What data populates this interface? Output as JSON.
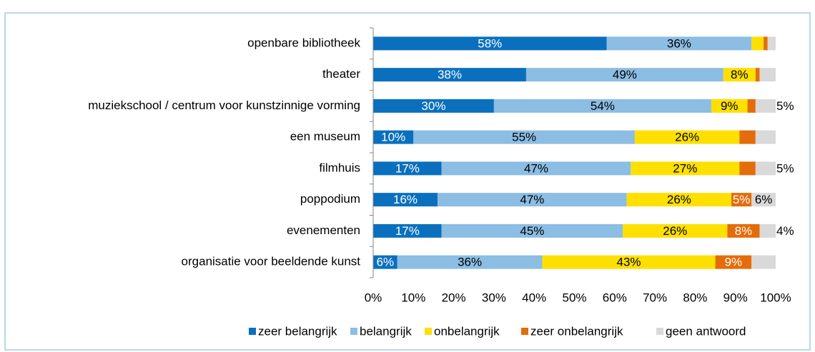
{
  "chart_data": {
    "type": "stacked_barh",
    "categories": [
      "openbare bibliotheek",
      "theater",
      "muziekschool / centrum voor kunstzinnige vorming",
      "een museum",
      "filmhuis",
      "poppodium",
      "evenementen",
      "organisatie voor beeldende kunst"
    ],
    "series": [
      {
        "name": "zeer belangrijk",
        "color": "#0a70be",
        "label_color": "#ffffff",
        "values": [
          58,
          38,
          30,
          10,
          17,
          16,
          17,
          6
        ],
        "value_labels": [
          "58%",
          "38%",
          "30%",
          "10%",
          "17%",
          "16%",
          "17%",
          "6%"
        ]
      },
      {
        "name": "belangrijk",
        "color": "#8cbde3",
        "label_color": "#000000",
        "values": [
          36,
          49,
          54,
          55,
          47,
          47,
          45,
          36
        ],
        "value_labels": [
          "36%",
          "49%",
          "54%",
          "55%",
          "47%",
          "47%",
          "45%",
          "36%"
        ]
      },
      {
        "name": "onbelangrijk",
        "color": "#fde000",
        "label_color": "#000000",
        "values": [
          3,
          8,
          9,
          26,
          27,
          26,
          26,
          43
        ],
        "value_labels": [
          null,
          "8%",
          "9%",
          "26%",
          "27%",
          "26%",
          "26%",
          "43%"
        ]
      },
      {
        "name": "zeer onbelangrijk",
        "color": "#e46c0a",
        "label_color": "#ffffff",
        "values": [
          1,
          1,
          2,
          4,
          4,
          5,
          8,
          9
        ],
        "value_labels": [
          null,
          null,
          null,
          null,
          null,
          "5%",
          "8%",
          "9%"
        ]
      },
      {
        "name": "geen antwoord",
        "color": "#d9d9d9",
        "label_color": "#000000",
        "values": [
          2,
          4,
          5,
          5,
          5,
          6,
          4,
          6
        ],
        "value_labels": [
          null,
          null,
          "5%",
          null,
          "5%",
          "6%",
          "4%",
          null
        ]
      }
    ],
    "xlim": [
      0,
      100
    ],
    "xticks": [
      {
        "value": 0,
        "label": "0%"
      },
      {
        "value": 10,
        "label": "10%"
      },
      {
        "value": 20,
        "label": "20%"
      },
      {
        "value": 30,
        "label": "30%"
      },
      {
        "value": 40,
        "label": "40%"
      },
      {
        "value": 50,
        "label": "50%"
      },
      {
        "value": 60,
        "label": "60%"
      },
      {
        "value": 70,
        "label": "70%"
      },
      {
        "value": 80,
        "label": "80%"
      },
      {
        "value": 90,
        "label": "90%"
      },
      {
        "value": 100,
        "label": "100%"
      }
    ],
    "legend": "bottom"
  }
}
